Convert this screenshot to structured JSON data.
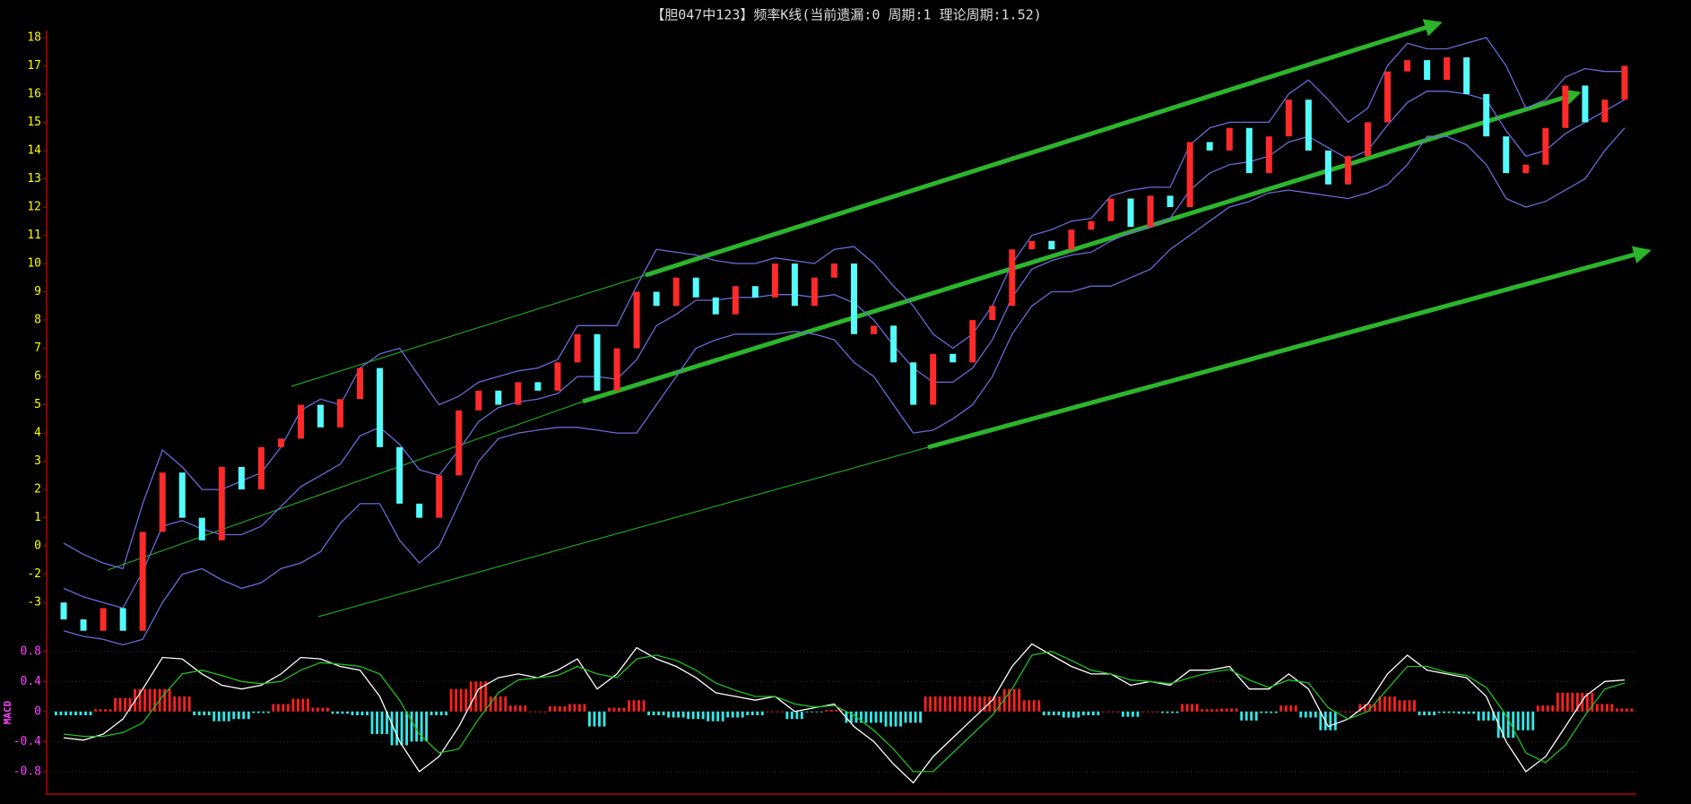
{
  "chart_data": [
    {
      "type": "candlestick",
      "title": "【胆047中123】频率K线(当前遗漏:0 周期:1 理论周期:1.52)",
      "up_color": "#ff2a2a",
      "down_color": "#54fcfc",
      "ylim": [
        -3.2,
        18.25
      ],
      "yticks": [
        18,
        17,
        16,
        15,
        14,
        13,
        12,
        11,
        10,
        9,
        8,
        7,
        6,
        5,
        4,
        3,
        2,
        1,
        0,
        {
          "value": -1,
          "label": "-2"
        },
        {
          "value": -2,
          "label": "-3"
        }
      ],
      "open": [
        -2.0,
        -2.6,
        -3.0,
        -2.2,
        -3.0,
        0.5,
        2.6,
        1.0,
        0.2,
        2.8,
        2.0,
        3.5,
        3.8,
        5.0,
        4.2,
        5.2,
        6.3,
        3.5,
        1.5,
        1.0,
        2.5,
        4.8,
        5.5,
        5.0,
        5.8,
        5.5,
        6.5,
        7.5,
        5.5,
        7.0,
        9.0,
        8.5,
        9.5,
        8.8,
        8.2,
        9.2,
        8.8,
        10.0,
        8.5,
        9.5,
        10.0,
        7.5,
        7.8,
        6.5,
        5.0,
        6.8,
        6.5,
        8.0,
        8.5,
        10.5,
        10.8,
        10.5,
        11.2,
        11.5,
        12.3,
        11.3,
        12.4,
        12.0,
        14.3,
        14.0,
        14.8,
        13.2,
        14.5,
        15.8,
        14.0,
        12.8,
        13.8,
        15.0,
        16.8,
        17.2,
        16.5,
        17.3,
        16.0,
        14.5,
        13.2,
        13.5,
        14.8,
        16.3,
        15.0,
        15.8
      ],
      "close": [
        -2.6,
        -3.0,
        -2.2,
        -3.0,
        0.5,
        2.6,
        1.0,
        0.2,
        2.8,
        2.0,
        3.5,
        3.8,
        5.0,
        4.2,
        5.2,
        6.3,
        3.5,
        1.5,
        1.0,
        2.5,
        4.8,
        5.5,
        5.0,
        5.8,
        5.5,
        6.5,
        7.5,
        5.5,
        7.0,
        9.0,
        8.5,
        9.5,
        8.8,
        8.2,
        9.2,
        8.8,
        10.0,
        8.5,
        9.5,
        10.0,
        7.5,
        7.8,
        6.5,
        5.0,
        6.8,
        6.5,
        8.0,
        8.5,
        10.5,
        10.8,
        10.5,
        11.2,
        11.5,
        12.3,
        11.3,
        12.4,
        12.0,
        14.3,
        14.0,
        14.8,
        13.2,
        14.5,
        15.8,
        14.0,
        12.8,
        13.8,
        15.0,
        16.8,
        17.2,
        16.5,
        17.3,
        16.0,
        14.5,
        13.2,
        13.5,
        14.8,
        16.3,
        15.0,
        15.8,
        17.0
      ],
      "lines": [
        {
          "color": "#6a6ad8",
          "values": [
            0.1,
            -0.3,
            -0.6,
            -0.8,
            1.5,
            3.4,
            2.8,
            2.0,
            2.0,
            2.3,
            2.6,
            3.5,
            4.8,
            5.2,
            5.0,
            6.3,
            6.8,
            7.0,
            6.0,
            5.0,
            5.3,
            5.8,
            6.0,
            6.2,
            6.3,
            6.6,
            7.8,
            7.8,
            7.8,
            9.2,
            10.5,
            10.4,
            10.3,
            10.1,
            10.0,
            10.0,
            10.2,
            10.1,
            10.0,
            10.5,
            10.6,
            10.0,
            9.2,
            8.5,
            7.5,
            7.0,
            7.5,
            8.5,
            10.0,
            11.0,
            11.2,
            11.5,
            11.6,
            12.4,
            12.6,
            12.7,
            12.7,
            14.2,
            14.8,
            15.0,
            15.0,
            15.0,
            16.0,
            16.5,
            15.8,
            15.0,
            15.5,
            17.0,
            17.8,
            17.6,
            17.6,
            17.8,
            18.0,
            17.0,
            15.5,
            15.8,
            16.6,
            16.9,
            16.8,
            16.8
          ]
        },
        {
          "color": "#6a6ad8",
          "values": [
            -1.5,
            -1.8,
            -2.0,
            -2.2,
            -0.9,
            0.7,
            0.9,
            0.6,
            0.4,
            0.4,
            0.7,
            1.4,
            2.1,
            2.5,
            2.9,
            3.9,
            4.2,
            3.6,
            2.7,
            2.5,
            3.4,
            4.4,
            4.9,
            5.1,
            5.2,
            5.4,
            6.0,
            6.0,
            5.9,
            6.6,
            7.8,
            8.2,
            8.7,
            8.7,
            8.8,
            8.8,
            8.9,
            8.9,
            8.8,
            8.9,
            8.6,
            8.0,
            7.1,
            6.3,
            5.8,
            5.8,
            6.3,
            7.3,
            8.8,
            9.8,
            10.1,
            10.3,
            10.4,
            10.8,
            11.1,
            11.3,
            11.6,
            12.6,
            13.2,
            13.5,
            13.6,
            13.8,
            14.3,
            14.5,
            14.1,
            13.7,
            14.0,
            14.9,
            15.7,
            16.1,
            16.1,
            16.0,
            15.8,
            14.7,
            13.8,
            14.0,
            14.6,
            15.0,
            15.4,
            15.8
          ]
        },
        {
          "color": "#6a6ad8",
          "values": [
            -3.0,
            -3.2,
            -3.3,
            -3.5,
            -3.3,
            -2.0,
            -1.0,
            -0.8,
            -1.2,
            -1.5,
            -1.3,
            -0.8,
            -0.6,
            -0.2,
            0.8,
            1.5,
            1.5,
            0.2,
            -0.6,
            0.0,
            1.5,
            3.0,
            3.8,
            4.0,
            4.1,
            4.2,
            4.2,
            4.1,
            4.0,
            4.0,
            5.0,
            6.0,
            7.0,
            7.3,
            7.5,
            7.5,
            7.5,
            7.6,
            7.5,
            7.3,
            6.5,
            6.0,
            5.0,
            4.0,
            4.1,
            4.5,
            5.0,
            6.0,
            7.5,
            8.5,
            9.0,
            9.0,
            9.2,
            9.2,
            9.5,
            9.8,
            10.5,
            11.0,
            11.5,
            12.0,
            12.2,
            12.5,
            12.6,
            12.5,
            12.4,
            12.3,
            12.5,
            12.8,
            13.5,
            14.5,
            14.5,
            14.2,
            13.5,
            12.3,
            12.0,
            12.2,
            12.6,
            13.0,
            14.0,
            14.8
          ]
        }
      ]
    },
    {
      "type": "macd",
      "label": "MACD",
      "ylim": [
        -1.1,
        1.0
      ],
      "yticks": [
        0.8,
        0.4,
        0,
        -0.4,
        -0.8
      ],
      "grid": true,
      "histogram": {
        "up_color": "#ff2020",
        "down_color": "#30e8e8",
        "values": [
          -0.05,
          -0.05,
          0.03,
          0.18,
          0.3,
          0.3,
          0.2,
          -0.05,
          -0.13,
          -0.1,
          -0.02,
          0.1,
          0.17,
          0.05,
          -0.03,
          -0.05,
          -0.3,
          -0.45,
          -0.4,
          -0.05,
          0.3,
          0.4,
          0.2,
          0.08,
          0.0,
          0.07,
          0.1,
          -0.2,
          0.05,
          0.15,
          -0.05,
          -0.08,
          -0.1,
          -0.13,
          -0.08,
          -0.05,
          0.0,
          -0.1,
          -0.01,
          0.02,
          -0.15,
          -0.15,
          -0.2,
          -0.15,
          0.2,
          0.2,
          0.2,
          0.2,
          0.3,
          0.15,
          -0.05,
          -0.08,
          -0.05,
          0.0,
          -0.07,
          0.0,
          -0.02,
          0.1,
          0.03,
          0.04,
          -0.12,
          -0.02,
          0.08,
          -0.08,
          -0.25,
          0.0,
          0.1,
          0.2,
          0.15,
          -0.05,
          -0.02,
          -0.03,
          -0.12,
          -0.35,
          -0.25,
          0.08,
          0.25,
          0.25,
          0.1,
          0.04
        ]
      },
      "lines": [
        {
          "color": "#ffffff",
          "values": [
            -0.35,
            -0.38,
            -0.3,
            -0.1,
            0.3,
            0.72,
            0.7,
            0.5,
            0.35,
            0.3,
            0.35,
            0.5,
            0.72,
            0.7,
            0.6,
            0.55,
            0.2,
            -0.4,
            -0.8,
            -0.6,
            -0.2,
            0.3,
            0.45,
            0.5,
            0.45,
            0.55,
            0.7,
            0.3,
            0.5,
            0.85,
            0.7,
            0.6,
            0.45,
            0.25,
            0.2,
            0.15,
            0.2,
            0.0,
            0.05,
            0.1,
            -0.2,
            -0.4,
            -0.7,
            -0.95,
            -0.6,
            -0.35,
            -0.1,
            0.15,
            0.6,
            0.9,
            0.75,
            0.6,
            0.5,
            0.5,
            0.35,
            0.4,
            0.35,
            0.55,
            0.55,
            0.6,
            0.3,
            0.3,
            0.5,
            0.3,
            -0.2,
            -0.1,
            0.1,
            0.5,
            0.75,
            0.55,
            0.5,
            0.45,
            0.2,
            -0.4,
            -0.8,
            -0.6,
            -0.2,
            0.2,
            0.4,
            0.42
          ]
        },
        {
          "color": "#22c022",
          "values": [
            -0.3,
            -0.33,
            -0.33,
            -0.28,
            -0.15,
            0.2,
            0.5,
            0.55,
            0.48,
            0.4,
            0.37,
            0.4,
            0.55,
            0.65,
            0.63,
            0.6,
            0.5,
            0.15,
            -0.3,
            -0.55,
            -0.5,
            -0.1,
            0.25,
            0.42,
            0.45,
            0.48,
            0.6,
            0.5,
            0.45,
            0.7,
            0.75,
            0.68,
            0.55,
            0.38,
            0.28,
            0.2,
            0.2,
            0.1,
            0.06,
            0.08,
            -0.05,
            -0.25,
            -0.5,
            -0.8,
            -0.8,
            -0.55,
            -0.3,
            -0.05,
            0.3,
            0.75,
            0.8,
            0.68,
            0.55,
            0.5,
            0.42,
            0.4,
            0.37,
            0.45,
            0.52,
            0.56,
            0.42,
            0.32,
            0.42,
            0.38,
            0.05,
            -0.1,
            0.0,
            0.3,
            0.6,
            0.6,
            0.52,
            0.48,
            0.32,
            -0.05,
            -0.55,
            -0.68,
            -0.45,
            -0.05,
            0.3,
            0.38
          ]
        }
      ]
    }
  ]
}
